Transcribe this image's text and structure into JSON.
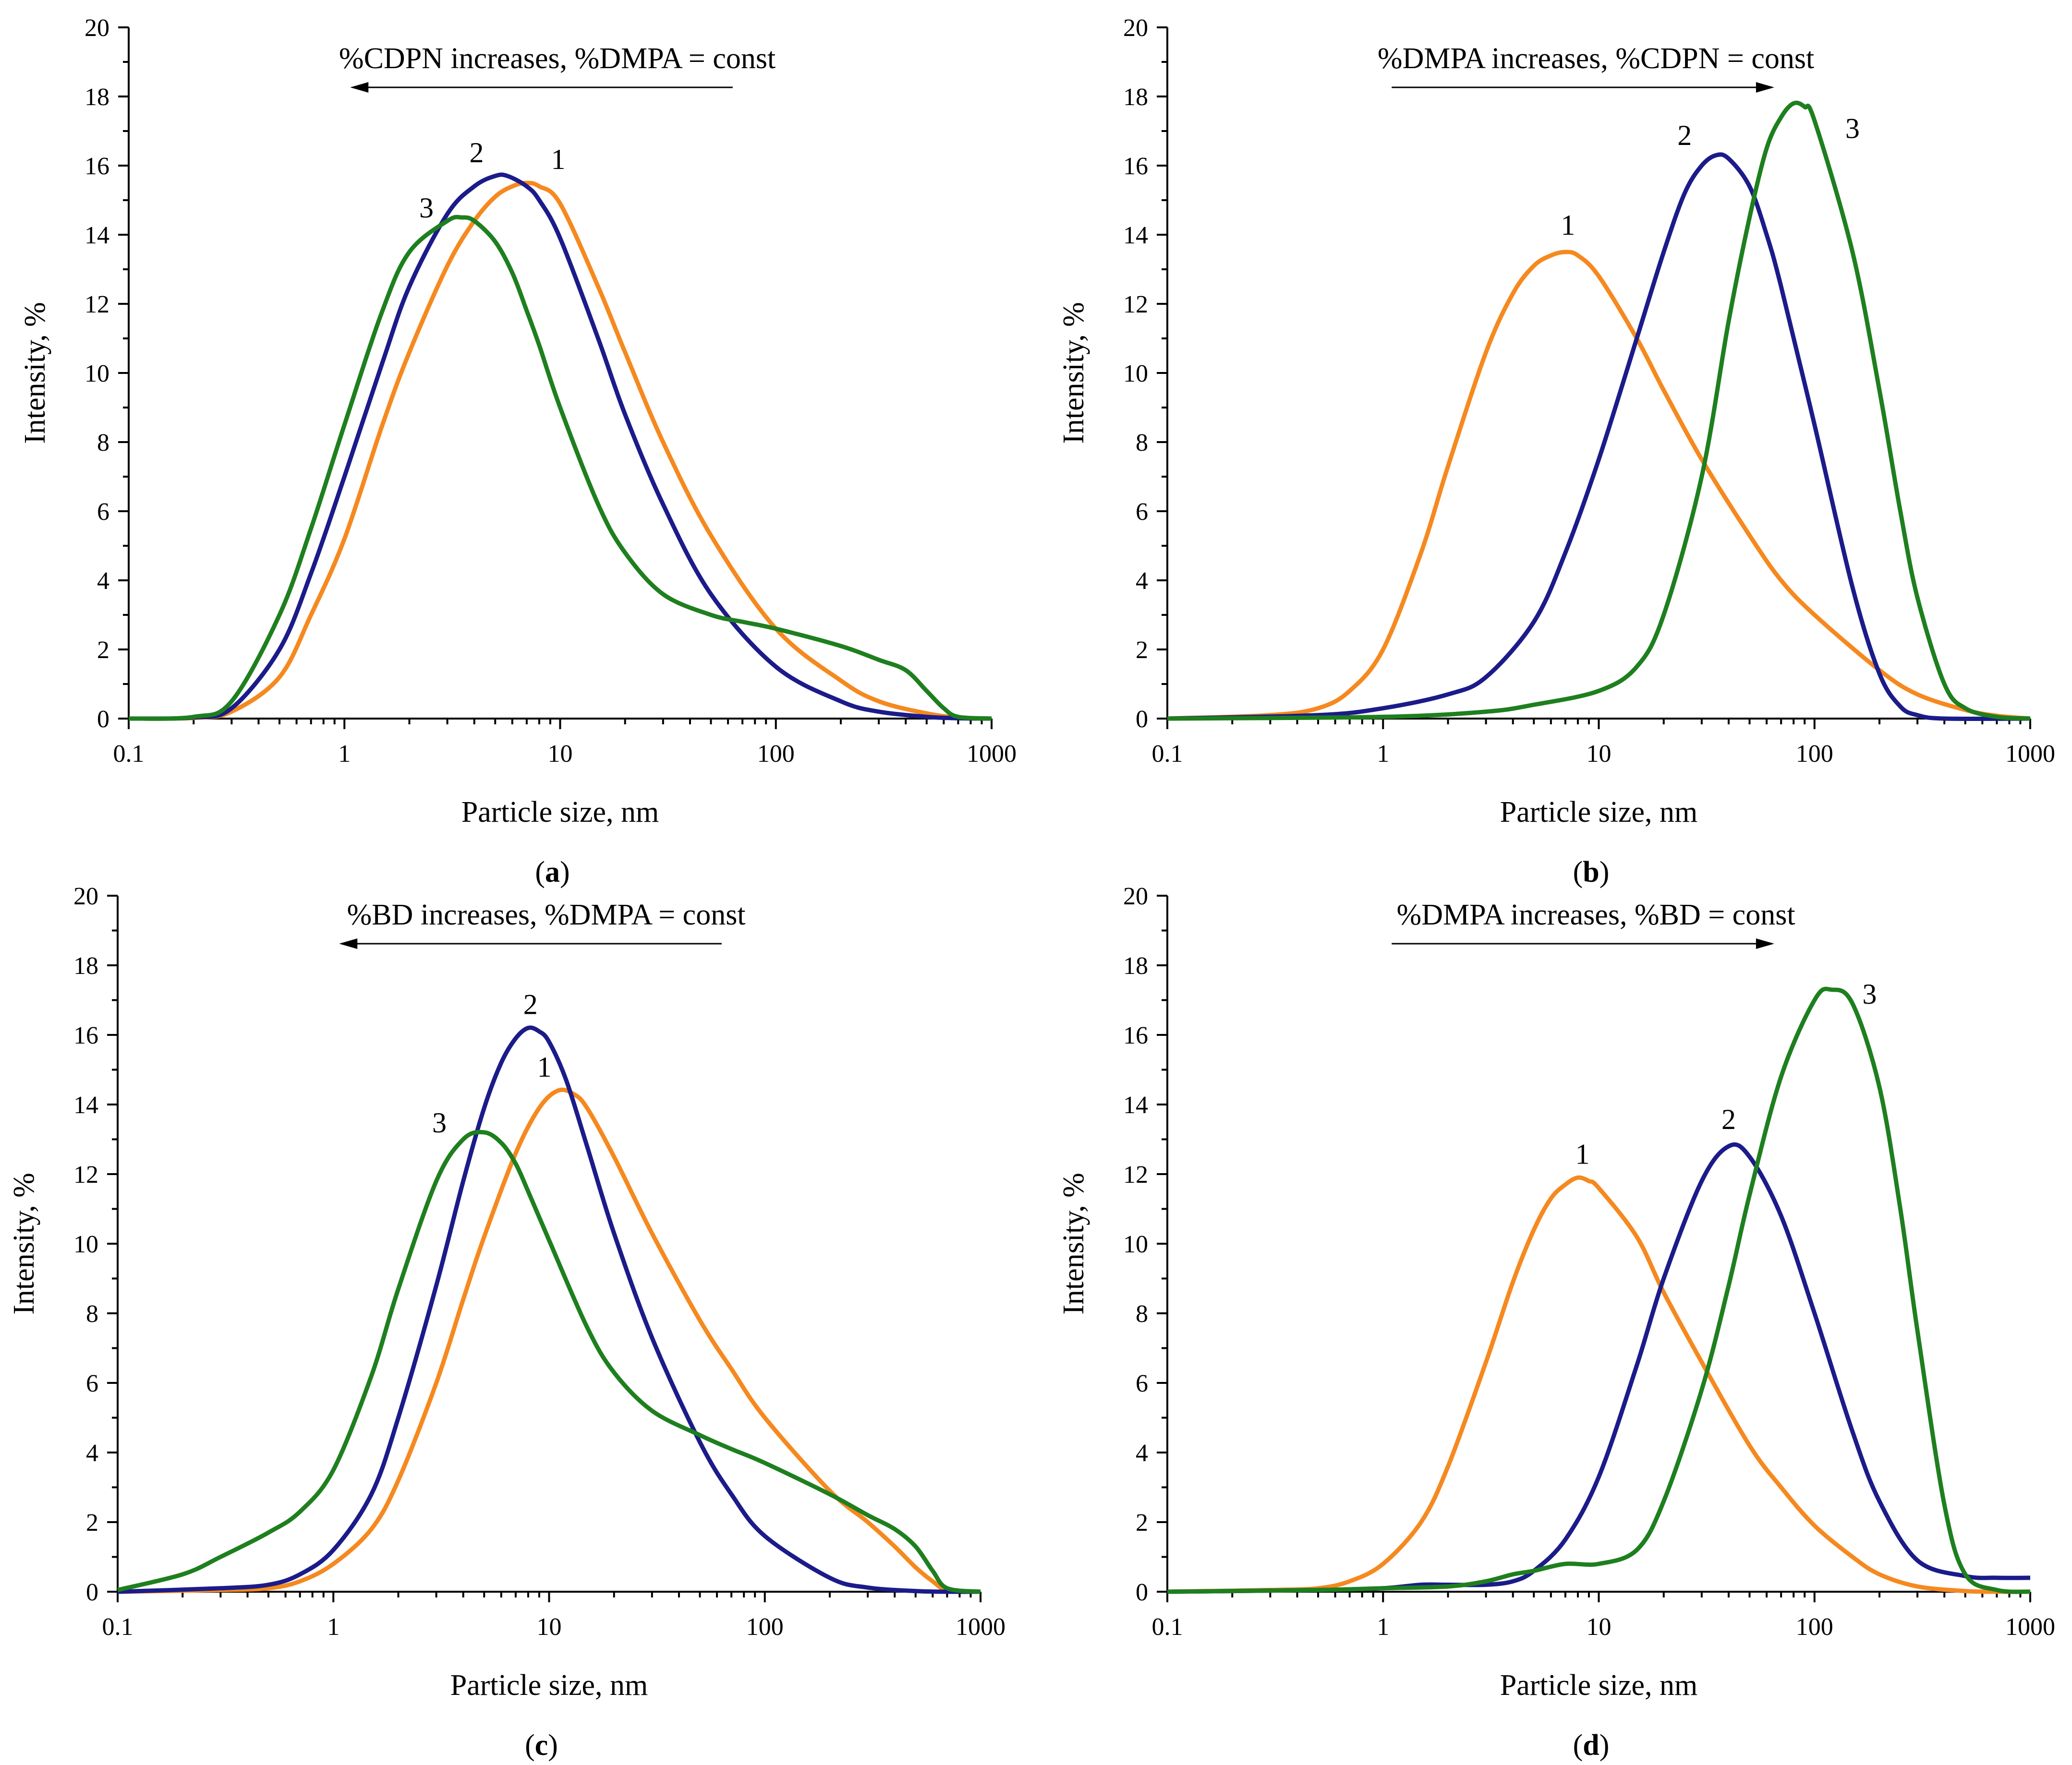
{
  "figure": {
    "colors": {
      "series1": "#F5891F",
      "series2": "#1B1B8A",
      "series3": "#1E7F1E",
      "axis": "#000000"
    }
  },
  "chart_data": [
    {
      "id": "a",
      "type": "line",
      "panel_label": "a",
      "xlabel": "Particle size, nm",
      "ylabel": "Intensity, %",
      "xscale": "log",
      "xlim": [
        0.1,
        1000
      ],
      "ylim": [
        0,
        20
      ],
      "xticks": [
        "0.1",
        "1",
        "10",
        "100",
        "1000"
      ],
      "yticks": [
        "0",
        "2",
        "4",
        "6",
        "8",
        "10",
        "12",
        "14",
        "16",
        "18",
        "20"
      ],
      "annotation": {
        "text": "%CDPN increases, %DMPA = const",
        "arrow": "left"
      },
      "series": [
        {
          "name": "1",
          "color": "series1",
          "label_at": [
            9.8,
            15.9
          ],
          "x": [
            0.1,
            0.2,
            0.3,
            0.5,
            0.7,
            1,
            1.5,
            2,
            3,
            4,
            5,
            6,
            7,
            8,
            10,
            15,
            20,
            30,
            50,
            100,
            200,
            300,
            500,
            700,
            1000
          ],
          "y": [
            0,
            0.02,
            0.2,
            1.2,
            3.0,
            5.2,
            8.5,
            10.6,
            13.1,
            14.4,
            15.1,
            15.4,
            15.5,
            15.4,
            14.9,
            12.5,
            10.6,
            8.0,
            5.3,
            2.6,
            1.1,
            0.5,
            0.15,
            0.03,
            0
          ]
        },
        {
          "name": "2",
          "color": "series2",
          "label_at": [
            4.1,
            16.1
          ],
          "x": [
            0.1,
            0.2,
            0.3,
            0.5,
            0.7,
            1,
            1.5,
            2,
            3,
            4,
            5,
            5.7,
            7,
            8,
            10,
            15,
            20,
            30,
            50,
            100,
            200,
            300,
            500,
            700,
            1000
          ],
          "y": [
            0,
            0.03,
            0.3,
            2.0,
            4.2,
            7.0,
            10.3,
            12.5,
            14.6,
            15.4,
            15.7,
            15.7,
            15.4,
            15.0,
            13.9,
            11.0,
            8.8,
            6.2,
            3.6,
            1.5,
            0.5,
            0.2,
            0.05,
            0.01,
            0
          ]
        },
        {
          "name": "3",
          "color": "series3",
          "label_at": [
            2.4,
            14.5
          ],
          "x": [
            0.1,
            0.2,
            0.3,
            0.5,
            0.7,
            1,
            1.5,
            2,
            3,
            3.5,
            4,
            5,
            6,
            7,
            8,
            10,
            15,
            20,
            30,
            50,
            70,
            100,
            200,
            300,
            400,
            500,
            600,
            700,
            1000
          ],
          "y": [
            0,
            0.05,
            0.5,
            3.0,
            5.5,
            8.5,
            11.8,
            13.5,
            14.4,
            14.5,
            14.4,
            13.8,
            12.9,
            11.8,
            10.8,
            9.0,
            6.2,
            4.8,
            3.6,
            3.0,
            2.8,
            2.6,
            2.1,
            1.7,
            1.4,
            0.8,
            0.3,
            0.05,
            0
          ]
        }
      ]
    },
    {
      "id": "b",
      "type": "line",
      "panel_label": "b",
      "xlabel": "Particle size, nm",
      "ylabel": "Intensity, %",
      "xscale": "log",
      "xlim": [
        0.1,
        1000
      ],
      "ylim": [
        0,
        20
      ],
      "xticks": [
        "0.1",
        "1",
        "10",
        "100",
        "1000"
      ],
      "yticks": [
        "0",
        "2",
        "4",
        "6",
        "8",
        "10",
        "12",
        "14",
        "16",
        "18",
        "20"
      ],
      "annotation": {
        "text": "%DMPA increases, %CDPN = const",
        "arrow": "right"
      },
      "series": [
        {
          "name": "1",
          "color": "series1",
          "label_at": [
            7.2,
            14.0
          ],
          "x": [
            0.1,
            0.3,
            0.5,
            0.7,
            1,
            1.5,
            2,
            3,
            4,
            5,
            6,
            7,
            8,
            10,
            15,
            20,
            30,
            50,
            70,
            100,
            200,
            300,
            500,
            700,
            1000
          ],
          "y": [
            0,
            0.1,
            0.3,
            0.8,
            2.0,
            4.8,
            7.3,
            10.6,
            12.3,
            13.1,
            13.4,
            13.5,
            13.4,
            12.8,
            11.0,
            9.5,
            7.5,
            5.3,
            4.0,
            3.0,
            1.4,
            0.7,
            0.25,
            0.08,
            0
          ]
        },
        {
          "name": "2",
          "color": "series2",
          "label_at": [
            25,
            16.6
          ],
          "x": [
            0.1,
            0.5,
            1,
            2,
            3,
            5,
            7,
            10,
            15,
            20,
            25,
            30,
            35,
            40,
            50,
            60,
            70,
            100,
            150,
            200,
            250,
            300,
            400,
            1000
          ],
          "y": [
            0,
            0.1,
            0.3,
            0.7,
            1.2,
            2.8,
            4.8,
            7.5,
            11.0,
            13.5,
            15.2,
            16.0,
            16.3,
            16.2,
            15.4,
            14.0,
            12.5,
            8.5,
            3.8,
            1.3,
            0.35,
            0.1,
            0,
            0
          ]
        },
        {
          "name": "3",
          "color": "series3",
          "label_at": [
            150,
            16.8
          ],
          "x": [
            0.1,
            1,
            3,
            5,
            10,
            15,
            20,
            30,
            40,
            50,
            60,
            70,
            80,
            90,
            100,
            150,
            200,
            250,
            300,
            400,
            500,
            700,
            1000
          ],
          "y": [
            0,
            0.05,
            0.2,
            0.4,
            0.8,
            1.5,
            3.0,
            7.0,
            11.5,
            14.5,
            16.5,
            17.4,
            17.8,
            17.7,
            17.3,
            13.5,
            9.5,
            6.0,
            3.5,
            1.0,
            0.3,
            0.05,
            0
          ]
        }
      ]
    },
    {
      "id": "c",
      "type": "line",
      "panel_label": "c",
      "xlabel": "Particle size, nm",
      "ylabel": "Intensity, %",
      "xscale": "log",
      "xlim": [
        0.1,
        1000
      ],
      "ylim": [
        0,
        20
      ],
      "xticks": [
        "0.1",
        "1",
        "10",
        "100",
        "1000"
      ],
      "yticks": [
        "0",
        "2",
        "4",
        "6",
        "8",
        "10",
        "12",
        "14",
        "16",
        "18",
        "20"
      ],
      "annotation": {
        "text": "%BD increases, %DMPA = const",
        "arrow": "left"
      },
      "series": [
        {
          "name": "1",
          "color": "series1",
          "label_at": [
            9.5,
            14.8
          ],
          "x": [
            0.1,
            0.3,
            0.5,
            0.7,
            1,
            1.5,
            2,
            3,
            4,
            5,
            7,
            9,
            11,
            13,
            15,
            20,
            30,
            50,
            70,
            100,
            200,
            300,
            400,
            500,
            600,
            700,
            1000
          ],
          "y": [
            0,
            0.05,
            0.1,
            0.3,
            0.8,
            1.8,
            3.2,
            6.0,
            8.4,
            10.2,
            12.6,
            13.9,
            14.4,
            14.3,
            13.9,
            12.5,
            10.3,
            7.8,
            6.4,
            5.0,
            2.9,
            2.0,
            1.3,
            0.7,
            0.3,
            0.05,
            0
          ]
        },
        {
          "name": "2",
          "color": "series2",
          "label_at": [
            8.2,
            16.6
          ],
          "x": [
            0.1,
            0.3,
            0.5,
            0.7,
            1,
            1.5,
            2,
            3,
            4,
            5,
            6,
            7,
            8,
            9,
            10,
            12,
            15,
            20,
            30,
            50,
            70,
            100,
            200,
            300,
            500,
            700,
            1000
          ],
          "y": [
            0,
            0.1,
            0.2,
            0.5,
            1.2,
            2.8,
            5.0,
            8.8,
            11.8,
            13.9,
            15.2,
            15.9,
            16.2,
            16.1,
            15.8,
            14.7,
            12.8,
            10.3,
            7.3,
            4.3,
            2.8,
            1.6,
            0.4,
            0.12,
            0.02,
            0,
            0
          ]
        },
        {
          "name": "3",
          "color": "series3",
          "label_at": [
            3.1,
            13.2
          ],
          "x": [
            0.1,
            0.2,
            0.3,
            0.5,
            0.7,
            1,
            1.5,
            2,
            3,
            4,
            5,
            6,
            7,
            8,
            10,
            15,
            20,
            30,
            50,
            70,
            100,
            200,
            300,
            400,
            500,
            600,
            700,
            1000
          ],
          "y": [
            0.05,
            0.5,
            1.0,
            1.7,
            2.3,
            3.5,
            6.2,
            8.7,
            11.8,
            13.0,
            13.2,
            12.9,
            12.3,
            11.5,
            10.1,
            7.6,
            6.3,
            5.2,
            4.5,
            4.1,
            3.7,
            2.8,
            2.2,
            1.8,
            1.3,
            0.6,
            0.1,
            0
          ]
        }
      ]
    },
    {
      "id": "d",
      "type": "line",
      "panel_label": "d",
      "xlabel": "Particle size, nm",
      "ylabel": "Intensity, %",
      "xscale": "log",
      "xlim": [
        0.1,
        1000
      ],
      "ylim": [
        0,
        20
      ],
      "xticks": [
        "0.1",
        "1",
        "10",
        "100",
        "1000"
      ],
      "yticks": [
        "0",
        "2",
        "4",
        "6",
        "8",
        "10",
        "12",
        "14",
        "16",
        "18",
        "20"
      ],
      "annotation": {
        "text": "%DMPA increases, %BD = const",
        "arrow": "right"
      },
      "series": [
        {
          "name": "1",
          "color": "series1",
          "label_at": [
            8.4,
            12.3
          ],
          "x": [
            0.1,
            0.3,
            0.5,
            0.7,
            1,
            1.5,
            2,
            3,
            4,
            5,
            6,
            7,
            8,
            9,
            10,
            15,
            20,
            30,
            50,
            70,
            100,
            150,
            200,
            300,
            500,
            700,
            1000
          ],
          "y": [
            0,
            0.05,
            0.1,
            0.3,
            0.8,
            2.0,
            3.6,
            6.6,
            8.9,
            10.4,
            11.3,
            11.7,
            11.9,
            11.8,
            11.6,
            10.2,
            8.6,
            6.6,
            4.2,
            3.0,
            1.9,
            1.0,
            0.5,
            0.15,
            0.02,
            0,
            0
          ]
        },
        {
          "name": "2",
          "color": "series2",
          "label_at": [
            40,
            13.3
          ],
          "x": [
            0.1,
            0.5,
            1,
            1.5,
            2,
            3,
            4,
            5,
            7,
            10,
            15,
            20,
            30,
            40,
            50,
            70,
            100,
            150,
            200,
            300,
            500,
            700,
            1000
          ],
          "y": [
            0,
            0.05,
            0.1,
            0.2,
            0.2,
            0.2,
            0.3,
            0.6,
            1.5,
            3.3,
            6.5,
            9.0,
            11.8,
            12.8,
            12.5,
            10.8,
            8.0,
            4.6,
            2.6,
            0.9,
            0.45,
            0.4,
            0.4
          ]
        },
        {
          "name": "3",
          "color": "series3",
          "label_at": [
            180,
            16.9
          ],
          "x": [
            0.1,
            0.5,
            1,
            2,
            3,
            4,
            5,
            7,
            10,
            15,
            20,
            30,
            40,
            50,
            70,
            100,
            120,
            150,
            200,
            250,
            300,
            400,
            500,
            700,
            1000
          ],
          "y": [
            0,
            0.05,
            0.1,
            0.15,
            0.3,
            0.5,
            0.6,
            0.8,
            0.8,
            1.2,
            2.6,
            5.8,
            8.8,
            11.4,
            14.8,
            17.0,
            17.3,
            16.9,
            14.5,
            11.0,
            7.5,
            2.5,
            0.5,
            0.05,
            0
          ]
        }
      ]
    }
  ]
}
